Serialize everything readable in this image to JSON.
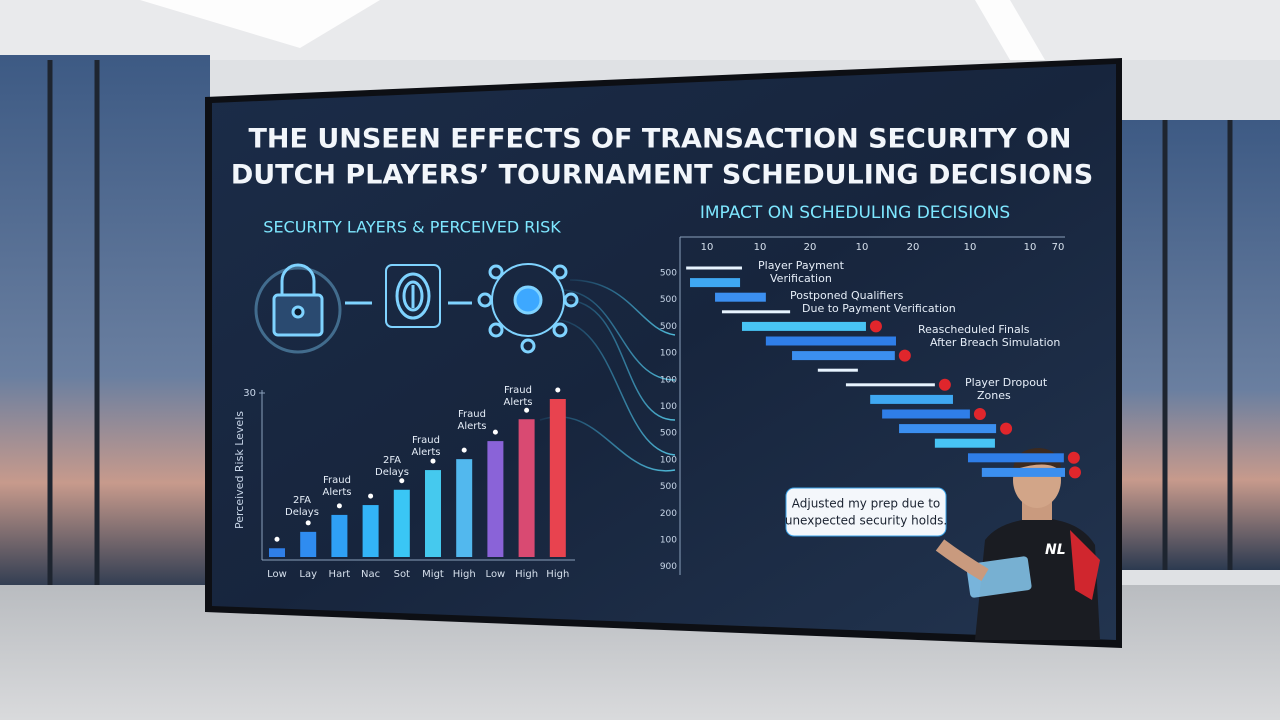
{
  "title": [
    "THE UNSEEN EFFECTS OF TRANSACTION SECURITY ON",
    "DUTCH PLAYERS’ TOURNAMENT SCHEDULING DECISIONS"
  ],
  "left_panel": {
    "title": "SECURITY LAYERS & PERCEIVED RISK",
    "chart": {
      "type": "bar",
      "y_label": "Perceived Risk Levels",
      "categories": [
        "Low",
        "Lay",
        "Hart",
        "Nac",
        "Sot",
        "Migt",
        "High",
        "Low",
        "High",
        "High"
      ],
      "values": [
        1.6,
        4.6,
        7.7,
        9.5,
        12.3,
        15.9,
        17.9,
        21.2,
        25.2,
        28.9
      ],
      "colors": [
        "#2f7fe8",
        "#2f8cf0",
        "#2fa0f5",
        "#33b4f7",
        "#3ac6f5",
        "#45c9ee",
        "#52b8ee",
        "#8a63d8",
        "#d94a72",
        "#e8434f"
      ],
      "ylim": [
        0,
        30
      ],
      "yticks": [
        30
      ],
      "annotations": [
        {
          "lines": [
            "2FA",
            "Delays"
          ]
        },
        {
          "lines": [
            "Fraud",
            "Alerts"
          ]
        },
        {
          "lines": [
            "2FA",
            "Delays"
          ]
        },
        {
          "lines": [
            "Fraud",
            "Alerts"
          ]
        },
        {
          "lines": [
            "Fraud",
            "Alerts"
          ]
        },
        {
          "lines": [
            "Fraud",
            "Alerts"
          ]
        }
      ]
    }
  },
  "right_panel": {
    "title": "IMPACT ON SCHEDULING DECISIONS",
    "chart": {
      "type": "gantt",
      "xticks": [
        "10",
        "10",
        "20",
        "10",
        "20",
        "10",
        "10",
        "70"
      ],
      "row_labels": [
        "500",
        "500",
        "500",
        "100",
        "100",
        "100",
        "500",
        "100",
        "500",
        "200",
        "100",
        "900"
      ],
      "xlim": [
        0,
        100
      ],
      "tasks": [
        {
          "start": 1.6,
          "end": 16.1,
          "color": "#e8f4ff",
          "alert": false
        },
        {
          "start": 2.6,
          "end": 15.6,
          "color": "#3fa8f2",
          "alert": false
        },
        {
          "start": 9.1,
          "end": 22.3,
          "color": "#3b8ff0",
          "alert": false
        },
        {
          "start": 10.9,
          "end": 28.6,
          "color": "#e8f4ff",
          "alert": false
        },
        {
          "start": 16.1,
          "end": 48.3,
          "color": "#48c4f4",
          "alert": true
        },
        {
          "start": 22.3,
          "end": 56.1,
          "color": "#2f7ee8",
          "alert": false
        },
        {
          "start": 29.1,
          "end": 55.8,
          "color": "#3b8ff0",
          "alert": true
        },
        {
          "start": 35.8,
          "end": 46.2,
          "color": "#e8f4ff",
          "alert": false
        },
        {
          "start": 43.1,
          "end": 66.2,
          "color": "#e8f4ff",
          "alert": true
        },
        {
          "start": 49.4,
          "end": 70.9,
          "color": "#3fa8f2",
          "alert": false
        },
        {
          "start": 52.5,
          "end": 75.3,
          "color": "#2f7ee8",
          "alert": true
        },
        {
          "start": 56.9,
          "end": 82.1,
          "color": "#3b8ff0",
          "alert": true
        },
        {
          "start": 66.2,
          "end": 81.8,
          "color": "#48c4f4",
          "alert": false
        },
        {
          "start": 74.8,
          "end": 99.7,
          "color": "#2f7ee8",
          "alert": true
        },
        {
          "start": 78.4,
          "end": 100,
          "color": "#3b8ff0",
          "alert": true
        }
      ],
      "annotations": [
        {
          "lines": [
            "Player Payment",
            "Verification"
          ]
        },
        {
          "lines": [
            "Postponed Qualifiers",
            "Due to Payment Verification"
          ]
        },
        {
          "lines": [
            "Reascheduled Finals",
            "After Breach Simulation"
          ]
        },
        {
          "lines": [
            "Player Dropout",
            "Zones"
          ]
        }
      ]
    },
    "callout": [
      "Adjusted my prep due to",
      "unexpected security holds."
    ],
    "jersey": "NL"
  }
}
